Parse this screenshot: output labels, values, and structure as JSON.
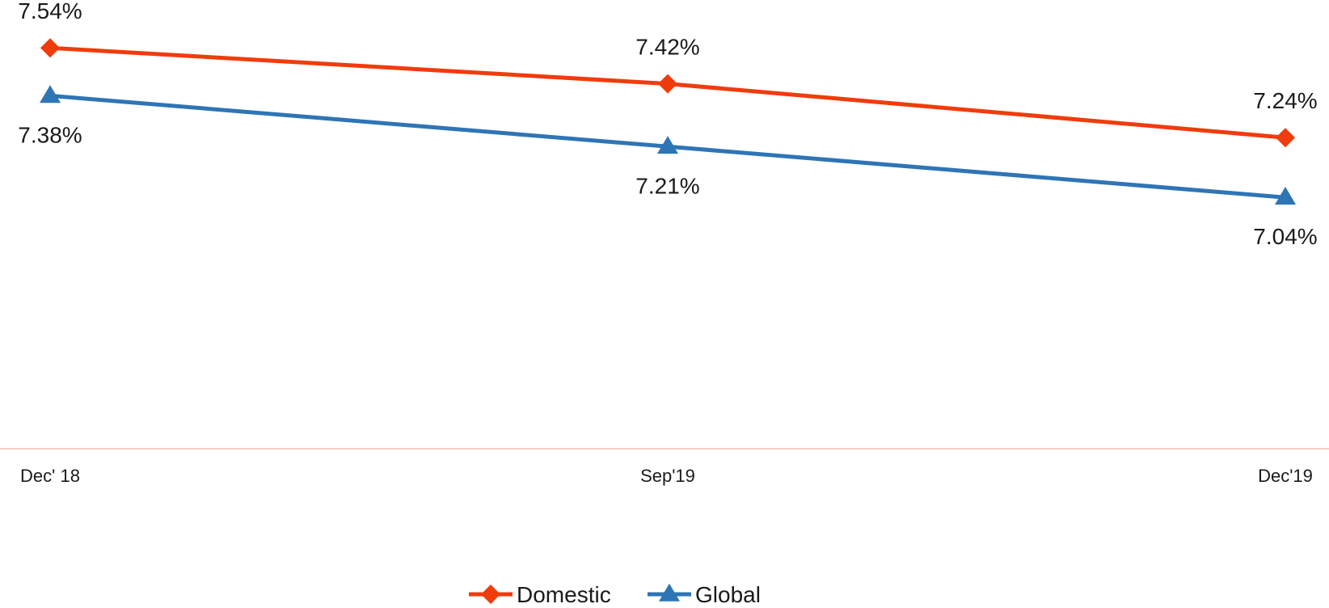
{
  "chart_data": {
    "type": "line",
    "categories": [
      "Dec' 18",
      "Sep'19",
      "Dec'19"
    ],
    "series": [
      {
        "name": "Domestic",
        "values": [
          7.54,
          7.42,
          7.24
        ],
        "labels": [
          "7.54%",
          "7.42%",
          "7.24%"
        ],
        "color": "#f03c0c",
        "marker": "diamond"
      },
      {
        "name": "Global",
        "values": [
          7.38,
          7.21,
          7.04
        ],
        "labels": [
          "7.38%",
          "7.21%",
          "7.04%"
        ],
        "color": "#2e75b6",
        "marker": "triangle"
      }
    ],
    "ylim": [
      6.2,
      7.7
    ],
    "grid": false,
    "legend": "bottom-center",
    "axis_color": "#f5d0c4"
  }
}
